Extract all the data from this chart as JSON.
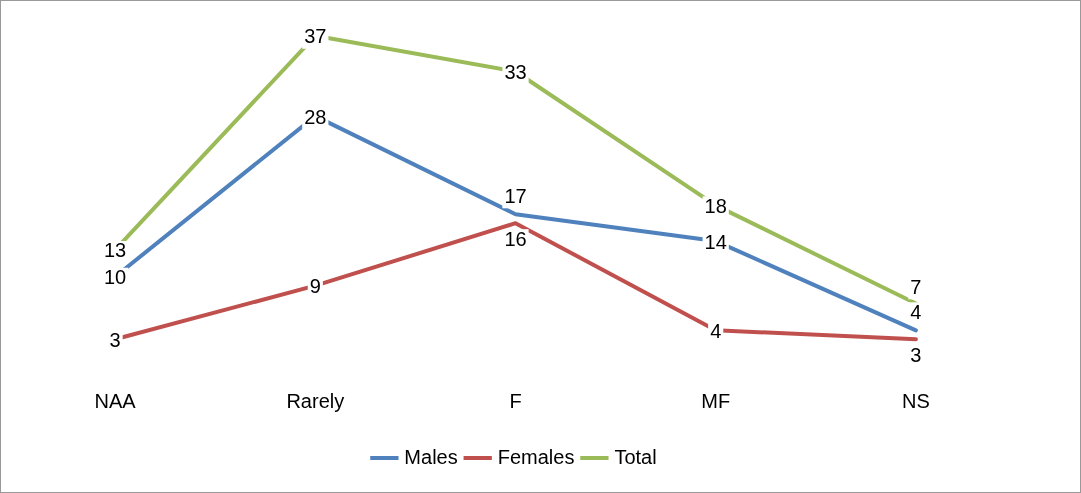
{
  "chart_data": {
    "type": "line",
    "categories": [
      "NAA",
      "Rarely",
      "F",
      "MF",
      "NS"
    ],
    "series": [
      {
        "name": "Males",
        "color": "#4f81bd",
        "values": [
          10,
          28,
          17,
          14,
          4
        ]
      },
      {
        "name": "Females",
        "color": "#c0504d",
        "values": [
          3,
          9,
          16,
          4,
          3
        ]
      },
      {
        "name": "Total",
        "color": "#9bbb59",
        "values": [
          13,
          37,
          33,
          18,
          7
        ]
      }
    ],
    "data_labels": true,
    "legend": "bottom",
    "grid": false,
    "marker": "none",
    "line_style": "solid"
  }
}
